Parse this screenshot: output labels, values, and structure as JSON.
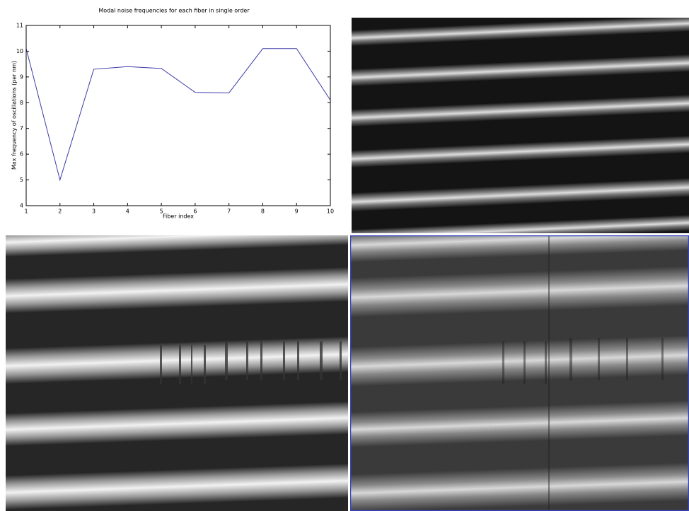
{
  "chart_data": {
    "type": "line",
    "title": "Modal noise frequencies for each fiber in single order",
    "x_label": "Fiber index",
    "y_label": "Max frequency of oscillations (per nm)",
    "x": [
      1,
      2,
      3,
      4,
      5,
      6,
      7,
      8,
      9,
      10
    ],
    "values": [
      10.1,
      5.0,
      9.3,
      9.4,
      9.33,
      8.4,
      8.38,
      10.1,
      10.1,
      8.1
    ],
    "color": "#3a3aa8",
    "xlim": [
      1,
      10
    ],
    "xticks": [
      1,
      2,
      3,
      4,
      5,
      6,
      7,
      8,
      9,
      10
    ],
    "ylim": [
      4,
      11
    ],
    "yticks": [
      4,
      5,
      6,
      7,
      8,
      9,
      10,
      11
    ],
    "grid": false
  }
}
